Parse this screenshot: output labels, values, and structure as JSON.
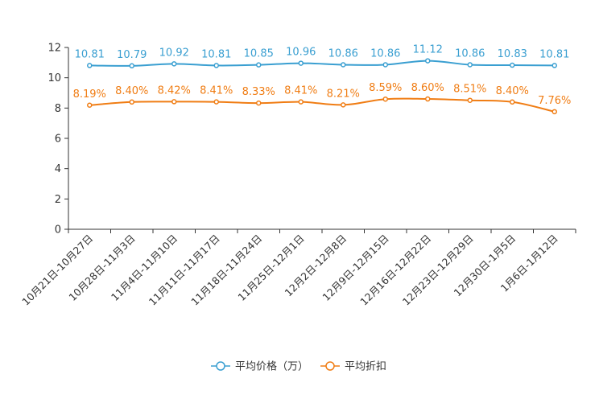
{
  "chart_data": {
    "type": "line",
    "title": "",
    "xlabel": "",
    "ylabel": "",
    "ylim": [
      0,
      12
    ],
    "yticks": [
      0,
      2,
      4,
      6,
      8,
      10,
      12
    ],
    "grid": false,
    "legend": "bottom",
    "categories": [
      "10月21日-10月27日",
      "10月28日-11月3日",
      "11月4日-11月10日",
      "11月11日-11月17日",
      "11月18日-11月24日",
      "11月25日-12月1日",
      "12月2日-12月8日",
      "12月9日-12月15日",
      "12月16日-12月22日",
      "12月23日-12月29日",
      "12月30日-1月5日",
      "1月6日-1月12日"
    ],
    "series": [
      {
        "name": "平均价格（万）",
        "color": "#3a9fd1",
        "values": [
          10.81,
          10.79,
          10.92,
          10.81,
          10.85,
          10.96,
          10.86,
          10.86,
          11.12,
          10.86,
          10.83,
          10.81
        ],
        "labels": [
          "10.81",
          "10.79",
          "10.92",
          "10.81",
          "10.85",
          "10.96",
          "10.86",
          "10.86",
          "11.12",
          "10.86",
          "10.83",
          "10.81"
        ]
      },
      {
        "name": "平均折扣",
        "color": "#f07d14",
        "values": [
          8.19,
          8.4,
          8.42,
          8.41,
          8.33,
          8.41,
          8.21,
          8.59,
          8.6,
          8.51,
          8.4,
          7.76
        ],
        "labels": [
          "8.19%",
          "8.40%",
          "8.42%",
          "8.41%",
          "8.33%",
          "8.41%",
          "8.21%",
          "8.59%",
          "8.60%",
          "8.51%",
          "8.40%",
          "7.76%"
        ]
      }
    ]
  }
}
